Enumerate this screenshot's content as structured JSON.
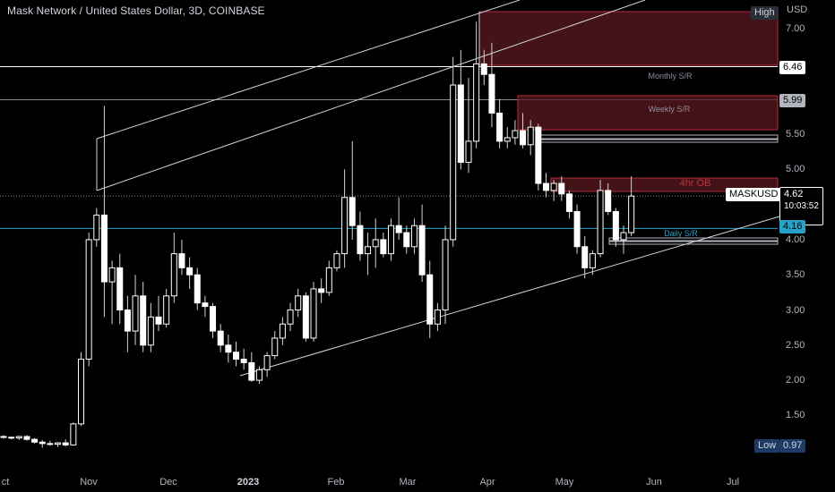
{
  "header": {
    "title": "Mask Network / United States Dollar, 3D, COINBASE"
  },
  "axis": {
    "currency": "USD",
    "y_ticks": [
      "7.00",
      "5.50",
      "5.00",
      "4.00",
      "3.50",
      "3.00",
      "2.50",
      "2.00",
      "1.50"
    ],
    "y_tick_values": [
      7.0,
      5.5,
      5.0,
      4.0,
      3.5,
      3.0,
      2.5,
      2.0,
      1.5
    ],
    "x_ticks": [
      "ct",
      "Nov",
      "Dec",
      "2023",
      "Feb",
      "Mar",
      "Apr",
      "May",
      "Jun",
      "Jul"
    ]
  },
  "tags": {
    "high": {
      "label": "High",
      "color": "#2a2e39",
      "text": "#d1d4dc"
    },
    "low": {
      "label": "Low",
      "value": "0.97",
      "color": "#1e3a66"
    },
    "monthly_level": {
      "value": "6.46",
      "color": "#ffffff",
      "text": "#000000"
    },
    "weekly_level": {
      "value": "5.99",
      "color": "#b2b5be",
      "text": "#000000"
    },
    "daily_level": {
      "value": "4.16",
      "color": "#26a1c8",
      "text": "#000000"
    },
    "symbol": {
      "label": "MASKUSD",
      "price": "4.62",
      "countdown": "10:03:52"
    }
  },
  "annotations": {
    "monthly": "Monthly S/R",
    "weekly": "Weekly S/R",
    "ob": "4hr OB",
    "daily": "Daily S/R"
  },
  "colors": {
    "candle_up": "#ffffff",
    "candle_down": "#ffffff",
    "zone": "#5a1a1f",
    "zone_border": "#b02a37",
    "daily_line": "#26a1c8"
  },
  "candles": [
    [
      1.2,
      1.22,
      1.17,
      1.19
    ],
    [
      1.19,
      1.2,
      1.16,
      1.18
    ],
    [
      1.18,
      1.21,
      1.15,
      1.2
    ],
    [
      1.2,
      1.22,
      1.14,
      1.16
    ],
    [
      1.16,
      1.18,
      1.1,
      1.12
    ],
    [
      1.12,
      1.15,
      1.04,
      1.1
    ],
    [
      1.1,
      1.14,
      1.07,
      1.09
    ],
    [
      1.09,
      1.12,
      1.05,
      1.11
    ],
    [
      1.11,
      1.16,
      1.06,
      1.08
    ],
    [
      1.08,
      1.4,
      1.07,
      1.38
    ],
    [
      1.38,
      2.4,
      1.35,
      2.3
    ],
    [
      2.3,
      4.1,
      2.2,
      4.0
    ],
    [
      4.0,
      4.45,
      3.9,
      4.35
    ],
    [
      4.35,
      5.9,
      2.9,
      3.4
    ],
    [
      3.4,
      3.7,
      2.8,
      3.6
    ],
    [
      3.6,
      3.8,
      2.8,
      3.0
    ],
    [
      3.0,
      3.2,
      2.4,
      2.7
    ],
    [
      2.7,
      3.5,
      2.5,
      3.2
    ],
    [
      3.2,
      3.4,
      2.4,
      2.5
    ],
    [
      2.5,
      3.1,
      2.4,
      2.9
    ],
    [
      2.9,
      3.2,
      2.7,
      2.8
    ],
    [
      2.8,
      3.3,
      2.75,
      3.2
    ],
    [
      3.2,
      4.1,
      3.1,
      3.8
    ],
    [
      3.8,
      4.0,
      3.5,
      3.6
    ],
    [
      3.6,
      3.75,
      3.3,
      3.5
    ],
    [
      3.5,
      3.6,
      3.0,
      3.1
    ],
    [
      3.1,
      3.2,
      2.9,
      3.05
    ],
    [
      3.05,
      3.1,
      2.6,
      2.7
    ],
    [
      2.7,
      2.8,
      2.4,
      2.5
    ],
    [
      2.5,
      2.65,
      2.25,
      2.4
    ],
    [
      2.4,
      2.55,
      2.2,
      2.3
    ],
    [
      2.3,
      2.45,
      2.15,
      2.25
    ],
    [
      2.25,
      2.4,
      1.98,
      2.0
    ],
    [
      2.0,
      2.2,
      1.95,
      2.15
    ],
    [
      2.15,
      2.4,
      2.05,
      2.35
    ],
    [
      2.35,
      2.7,
      2.3,
      2.6
    ],
    [
      2.6,
      2.9,
      2.5,
      2.8
    ],
    [
      2.8,
      3.1,
      2.7,
      3.0
    ],
    [
      3.0,
      3.3,
      2.9,
      3.2
    ],
    [
      3.2,
      3.25,
      2.55,
      2.6
    ],
    [
      2.6,
      3.4,
      2.55,
      3.3
    ],
    [
      3.3,
      3.45,
      3.1,
      3.25
    ],
    [
      3.25,
      3.7,
      3.2,
      3.6
    ],
    [
      3.6,
      3.85,
      3.55,
      3.8
    ],
    [
      3.8,
      5.0,
      3.6,
      4.6
    ],
    [
      4.6,
      5.4,
      4.0,
      4.2
    ],
    [
      4.2,
      4.4,
      3.7,
      3.8
    ],
    [
      3.8,
      4.1,
      3.5,
      3.9
    ],
    [
      3.9,
      4.3,
      3.6,
      4.0
    ],
    [
      4.0,
      4.1,
      3.75,
      3.8
    ],
    [
      3.8,
      4.3,
      3.7,
      4.2
    ],
    [
      4.2,
      4.6,
      4.0,
      4.1
    ],
    [
      4.1,
      4.2,
      3.8,
      3.9
    ],
    [
      3.9,
      4.3,
      3.8,
      4.2
    ],
    [
      4.2,
      4.5,
      3.4,
      3.5
    ],
    [
      3.5,
      3.7,
      2.6,
      2.8
    ],
    [
      2.8,
      3.1,
      2.7,
      3.0
    ],
    [
      3.0,
      4.2,
      2.8,
      4.0
    ],
    [
      4.0,
      6.6,
      3.9,
      6.2
    ],
    [
      6.2,
      6.7,
      5.0,
      5.1
    ],
    [
      5.1,
      6.3,
      4.95,
      5.4
    ],
    [
      5.4,
      7.1,
      5.3,
      6.5
    ],
    [
      6.5,
      6.7,
      6.2,
      6.35
    ],
    [
      6.35,
      6.8,
      5.6,
      5.8
    ],
    [
      5.8,
      6.0,
      5.3,
      5.4
    ],
    [
      5.4,
      5.6,
      5.3,
      5.45
    ],
    [
      5.45,
      5.7,
      5.35,
      5.55
    ],
    [
      5.55,
      5.8,
      5.3,
      5.35
    ],
    [
      5.35,
      5.7,
      5.2,
      5.6
    ],
    [
      5.6,
      5.65,
      4.7,
      4.8
    ],
    [
      4.8,
      4.95,
      4.6,
      4.7
    ],
    [
      4.7,
      4.85,
      4.55,
      4.8
    ],
    [
      4.8,
      4.9,
      4.55,
      4.65
    ],
    [
      4.65,
      4.7,
      4.3,
      4.4
    ],
    [
      4.4,
      4.5,
      3.8,
      3.9
    ],
    [
      3.9,
      4.05,
      3.45,
      3.6
    ],
    [
      3.6,
      3.85,
      3.5,
      3.8
    ],
    [
      3.8,
      4.85,
      3.75,
      4.7
    ],
    [
      4.7,
      4.8,
      4.35,
      4.4
    ],
    [
      4.4,
      4.45,
      3.9,
      4.0
    ],
    [
      4.0,
      4.2,
      3.8,
      4.1
    ],
    [
      4.1,
      4.9,
      4.05,
      4.62
    ]
  ]
}
